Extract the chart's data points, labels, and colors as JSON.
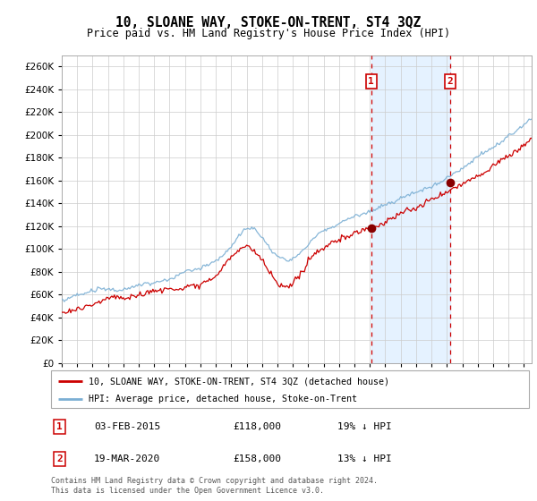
{
  "title": "10, SLOANE WAY, STOKE-ON-TRENT, ST4 3QZ",
  "subtitle": "Price paid vs. HM Land Registry's House Price Index (HPI)",
  "legend_line1": "10, SLOANE WAY, STOKE-ON-TRENT, ST4 3QZ (detached house)",
  "legend_line2": "HPI: Average price, detached house, Stoke-on-Trent",
  "sale1_date": "03-FEB-2015",
  "sale1_price": 118000,
  "sale1_note": "19% ↓ HPI",
  "sale2_date": "19-MAR-2020",
  "sale2_price": 158000,
  "sale2_note": "13% ↓ HPI",
  "sale1_x": 2015.09,
  "sale2_x": 2020.21,
  "hpi_color": "#7bafd4",
  "price_color": "#cc0000",
  "dot_color": "#880000",
  "shade_color": "#ddeeff",
  "vline_color": "#cc0000",
  "grid_color": "#cccccc",
  "background_color": "#ffffff",
  "ylim": [
    0,
    270000
  ],
  "xlim_start": 1995,
  "xlim_end": 2025.5,
  "footer": "Contains HM Land Registry data © Crown copyright and database right 2024.\nThis data is licensed under the Open Government Licence v3.0."
}
